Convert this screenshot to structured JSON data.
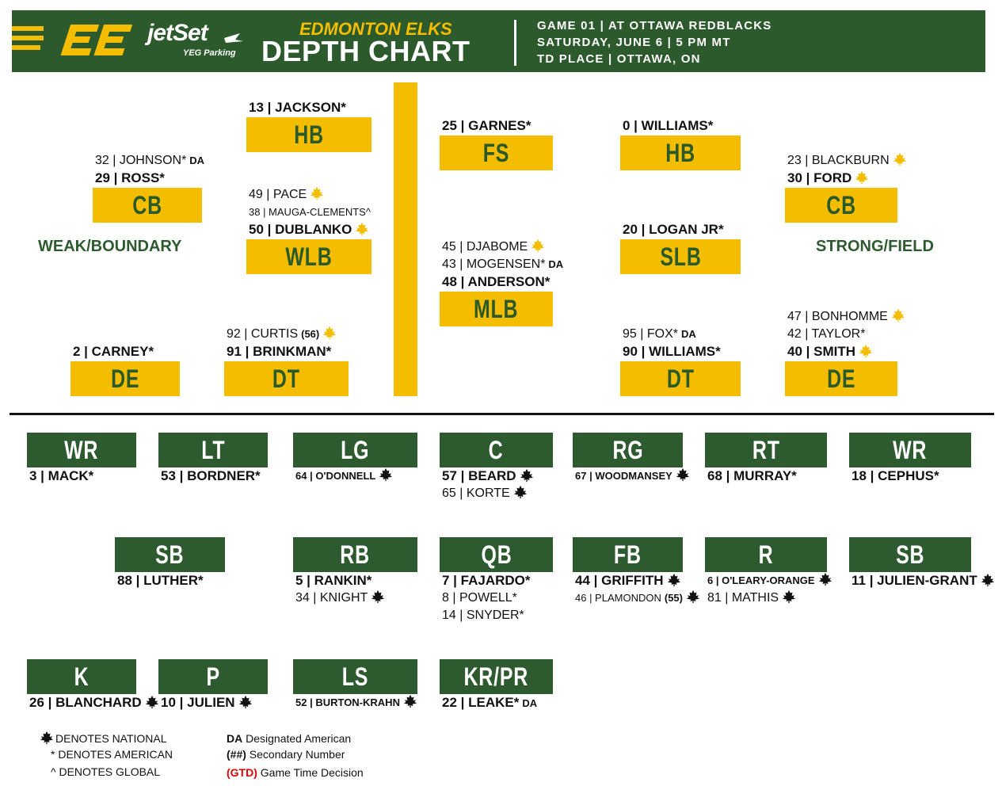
{
  "header": {
    "sponsor": "jetSet",
    "sponsor_sub": "YEG Parking",
    "team": "EDMONTON ELKS",
    "title": "DEPTH CHART",
    "game_lines": [
      "GAME 01 | AT OTTAWA REDBLACKS",
      "SATURDAY, JUNE 6 | 5 PM MT",
      "TD PLACE | OTTAWA, ON"
    ]
  },
  "side_labels": {
    "weak": "WEAK/BOUNDARY",
    "strong": "STRONG/FIELD"
  },
  "defense": [
    {
      "label": "HB",
      "players": [
        {
          "text": "13 | JACKSON*"
        }
      ]
    },
    {
      "label": "CB",
      "players": [
        {
          "text": "32 | JOHNSON*",
          "tag": "DA"
        },
        {
          "text": "29 | ROSS*"
        }
      ]
    },
    {
      "label": "WLB",
      "players": [
        {
          "text": "49 | PACE",
          "national": true
        },
        {
          "text": "38 | MAUGA-CLEMENTS^"
        },
        {
          "text": "50 | DUBLANKO",
          "national": true
        }
      ]
    },
    {
      "label": "DE",
      "players": [
        {
          "text": "2 | CARNEY*"
        }
      ]
    },
    {
      "label": "DT",
      "players": [
        {
          "text": "92 | CURTIS",
          "tag": "(56)",
          "national": true
        },
        {
          "text": "91 | BRINKMAN*"
        }
      ]
    },
    {
      "label": "FS",
      "players": [
        {
          "text": "25 | GARNES*"
        }
      ]
    },
    {
      "label": "MLB",
      "players": [
        {
          "text": "45 | DJABOME",
          "national": true
        },
        {
          "text": "43 | MOGENSEN*",
          "tag": "DA"
        },
        {
          "text": "48 | ANDERSON*"
        }
      ]
    },
    {
      "label": "HB",
      "players": [
        {
          "text": "0 | WILLIAMS*"
        }
      ]
    },
    {
      "label": "SLB",
      "players": [
        {
          "text": "20 | LOGAN JR*"
        }
      ]
    },
    {
      "label": "DT",
      "players": [
        {
          "text": "95 | FOX*",
          "tag": "DA"
        },
        {
          "text": "90 | WILLIAMS*"
        }
      ]
    },
    {
      "label": "CB",
      "players": [
        {
          "text": "23 | BLACKBURN",
          "national": true
        },
        {
          "text": "30 | FORD",
          "national": true
        }
      ]
    },
    {
      "label": "DE",
      "players": [
        {
          "text": "47 | BONHOMME",
          "national": true
        },
        {
          "text": "42 | TAYLOR*"
        },
        {
          "text": "40 | SMITH",
          "national": true
        }
      ]
    }
  ],
  "offense": [
    {
      "label": "WR",
      "players": [
        {
          "text": "3 | MACK*"
        }
      ]
    },
    {
      "label": "LT",
      "players": [
        {
          "text": "53 | BORDNER*"
        }
      ]
    },
    {
      "label": "LG",
      "players": [
        {
          "text": "64 | O'DONNELL",
          "national": true
        }
      ]
    },
    {
      "label": "C",
      "players": [
        {
          "text": "57 | BEARD",
          "national": true
        },
        {
          "text": "65 | KORTE",
          "national": true
        }
      ]
    },
    {
      "label": "RG",
      "players": [
        {
          "text": "67 | WOODMANSEY",
          "national": true
        }
      ]
    },
    {
      "label": "RT",
      "players": [
        {
          "text": "68 | MURRAY*"
        }
      ]
    },
    {
      "label": "WR",
      "players": [
        {
          "text": "18 | CEPHUS*"
        }
      ]
    },
    {
      "label": "SB",
      "players": [
        {
          "text": "88 | LUTHER*"
        }
      ]
    },
    {
      "label": "RB",
      "players": [
        {
          "text": "5 | RANKIN*"
        },
        {
          "text": "34 | KNIGHT",
          "national": true
        }
      ]
    },
    {
      "label": "QB",
      "players": [
        {
          "text": "7 | FAJARDO*"
        },
        {
          "text": "8 | POWELL*"
        },
        {
          "text": "14 | SNYDER*"
        }
      ]
    },
    {
      "label": "FB",
      "players": [
        {
          "text": "44 | GRIFFITH",
          "national": true
        },
        {
          "text": "46 | PLAMONDON",
          "tag": "(55)",
          "national": true
        }
      ]
    },
    {
      "label": "R",
      "players": [
        {
          "text": "6 | O'LEARY-ORANGE",
          "national": true
        },
        {
          "text": "81 | MATHIS",
          "national": true
        }
      ]
    },
    {
      "label": "SB",
      "players": [
        {
          "text": "11 | JULIEN-GRANT",
          "national": true
        }
      ]
    },
    {
      "label": "K",
      "players": [
        {
          "text": "26 | BLANCHARD",
          "national": true
        }
      ]
    },
    {
      "label": "P",
      "players": [
        {
          "text": "10 | JULIEN",
          "national": true
        }
      ]
    },
    {
      "label": "LS",
      "players": [
        {
          "text": "52 | BURTON-KRAHN",
          "national": true
        }
      ]
    },
    {
      "label": "KR/PR",
      "players": [
        {
          "text": "22 | LEAKE*",
          "tag": "DA"
        }
      ]
    }
  ],
  "legend": {
    "national": "DENOTES NATIONAL",
    "american": "* DENOTES AMERICAN",
    "global": "^ DENOTES GLOBAL",
    "items": [
      {
        "key": "DA",
        "text": "Designated American"
      },
      {
        "key": "(##)",
        "text": "Secondary Number"
      },
      {
        "key": "(GTD)",
        "text": "Game Time Decision"
      }
    ]
  }
}
